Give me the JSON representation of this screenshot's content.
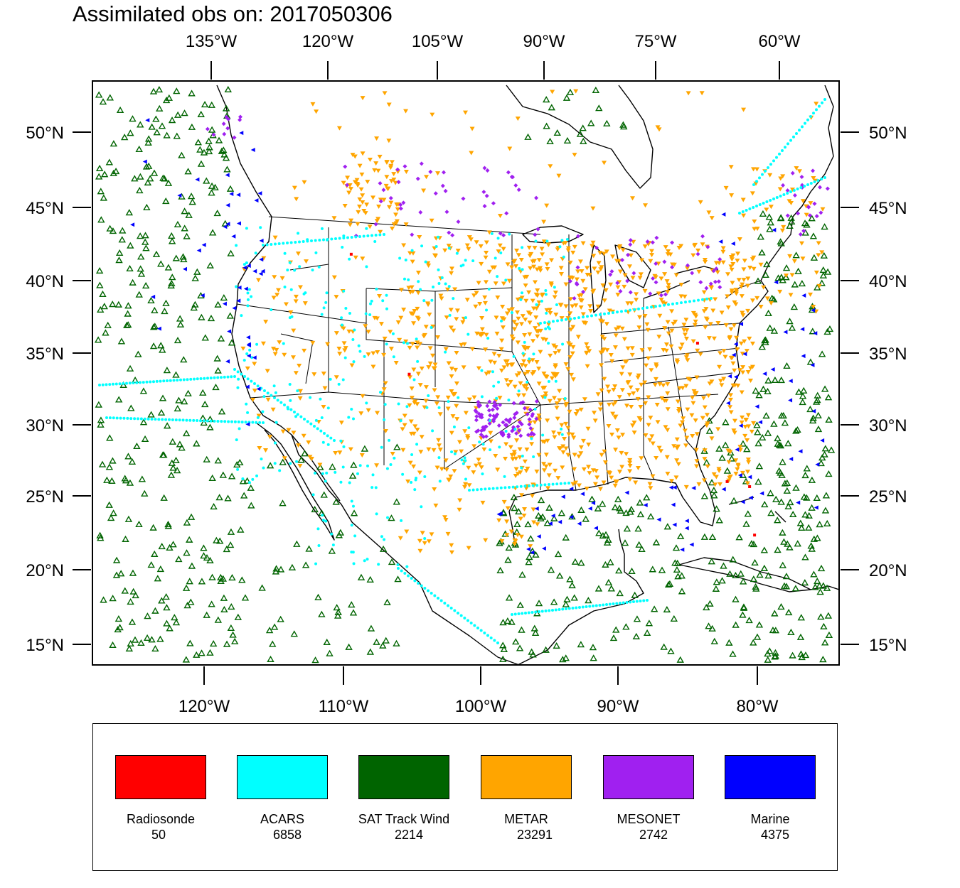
{
  "title": "Assimilated obs on: 2017050306",
  "top_lon_labels": [
    "135°W",
    "120°W",
    "105°W",
    "90°W",
    "75°W",
    "60°W"
  ],
  "bottom_lon_labels": [
    "120°W",
    "110°W",
    "100°W",
    "90°W",
    "80°W"
  ],
  "lat_labels": [
    "50°N",
    "45°N",
    "40°N",
    "35°N",
    "30°N",
    "25°N",
    "20°N",
    "15°N"
  ],
  "colors": {
    "radiosonde": "#ff0000",
    "acars": "#00ffff",
    "sat_track_wind": "#006400",
    "metar": "#ffa500",
    "mesonet": "#a020f0",
    "marine": "#0000ff",
    "coastline": "#000000"
  },
  "legend": [
    {
      "key": "radiosonde",
      "label": "Radiosonde",
      "count": "50"
    },
    {
      "key": "acars",
      "label": "ACARS",
      "count": "6858"
    },
    {
      "key": "sat_track_wind",
      "label": "SAT Track Wind",
      "count": "2214"
    },
    {
      "key": "metar",
      "label": "METAR",
      "count": "23291"
    },
    {
      "key": "mesonet",
      "label": "MESONET",
      "count": "2742"
    },
    {
      "key": "marine",
      "label": "Marine",
      "count": "4375"
    }
  ]
}
